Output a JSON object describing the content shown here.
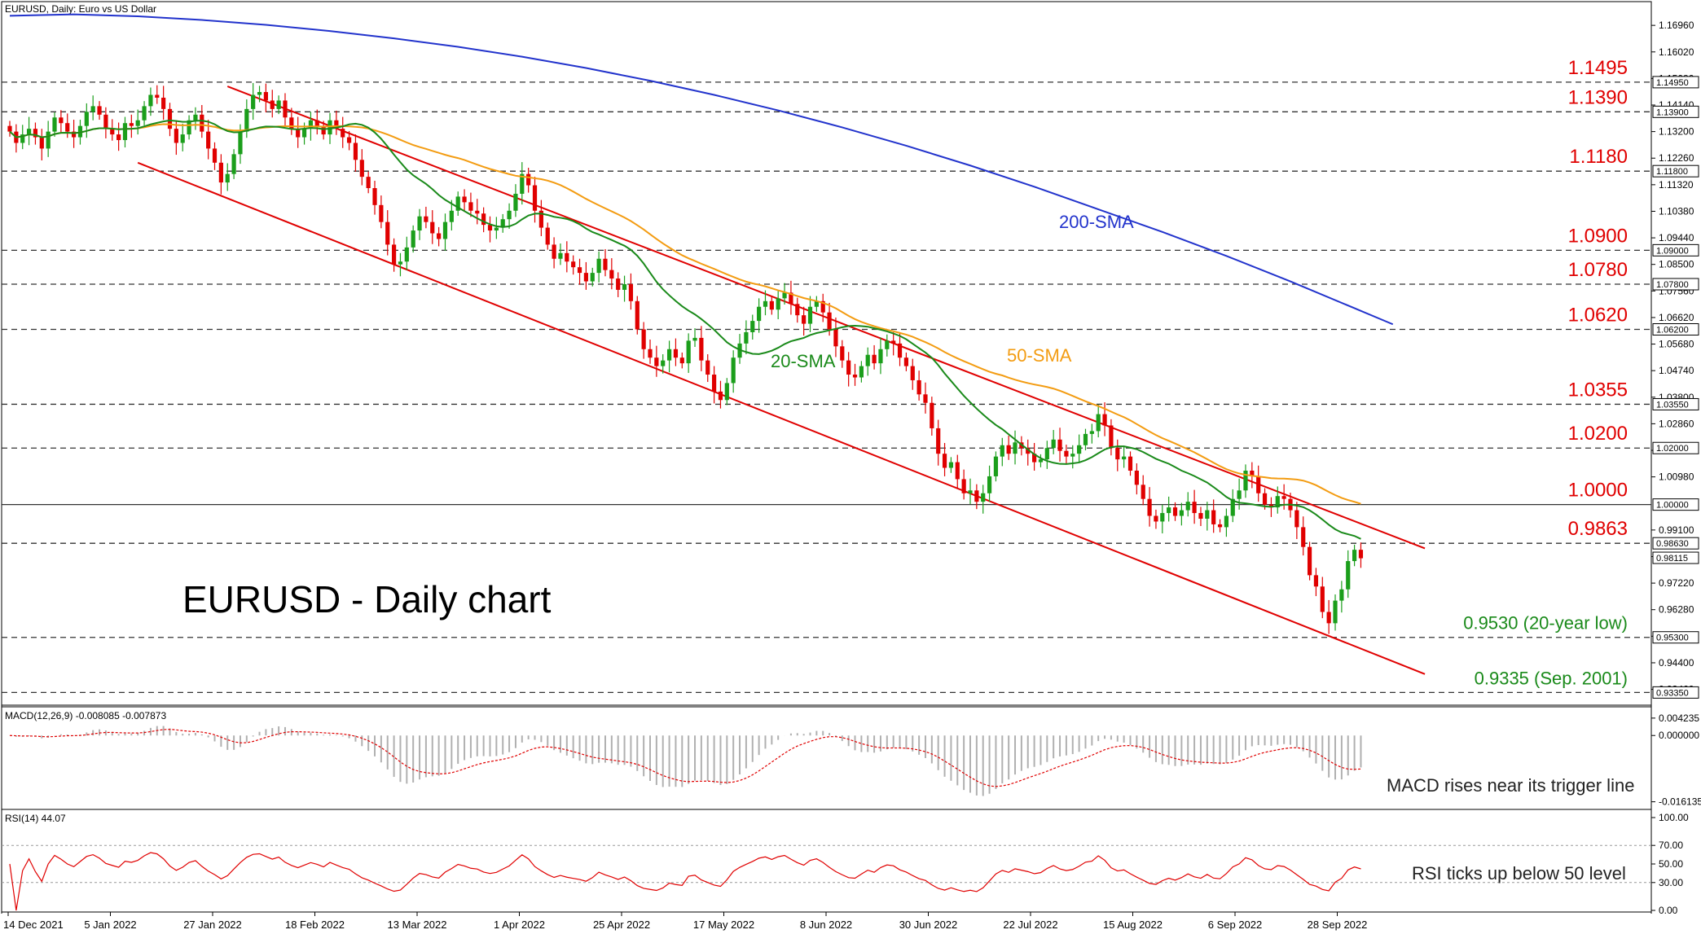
{
  "chart_data": {
    "type": "candlestick",
    "symbol_header": "EURUSD, Daily:  Euro vs US Dollar",
    "title": "EURUSD - Daily chart",
    "price_ticks": [
      "1.16960",
      "1.16020",
      "1.15080",
      "1.14140",
      "1.13200",
      "1.12260",
      "1.11320",
      "1.10380",
      "1.09440",
      "1.08500",
      "1.07560",
      "1.06620",
      "1.05680",
      "1.04740",
      "1.03800",
      "1.02860",
      "1.01920",
      "1.00980",
      "0.99100",
      "0.98160",
      "0.97220",
      "0.96280",
      "0.95340",
      "0.94400",
      "0.93460"
    ],
    "ylim": [
      0.929,
      1.178
    ],
    "levels": [
      {
        "value": 1.1495,
        "label": "1.1495",
        "box": "1.14950"
      },
      {
        "value": 1.139,
        "label": "1.1390",
        "box": "1.13900"
      },
      {
        "value": 1.118,
        "label": "1.1180",
        "box": "1.11800"
      },
      {
        "value": 1.09,
        "label": "1.0900",
        "box": "1.09000"
      },
      {
        "value": 1.078,
        "label": "1.0780",
        "box": "1.07800"
      },
      {
        "value": 1.062,
        "label": "1.0620",
        "box": "1.06200"
      },
      {
        "value": 1.0355,
        "label": "1.0355",
        "box": "1.03550"
      },
      {
        "value": 1.02,
        "label": "1.0200",
        "box": "1.02000"
      },
      {
        "value": 1.0,
        "label": "1.0000",
        "box": "1.00000",
        "solid": true
      },
      {
        "value": 0.9863,
        "label": "0.9863",
        "box": "0.98630"
      },
      {
        "value": 0.953,
        "label": "0.9530 (20-year low)",
        "box": "0.95300",
        "green": true
      },
      {
        "value": 0.9335,
        "label": "0.9335 (Sep. 2001)",
        "box": "0.93350",
        "green": true
      }
    ],
    "last_price_box": "0.98115",
    "last_price": 0.98115,
    "dates": [
      "14 Dec 2021",
      "5 Jan 2022",
      "27 Jan 2022",
      "18 Feb 2022",
      "13 Mar 2022",
      "1 Apr 2022",
      "25 Apr 2022",
      "17 May 2022",
      "8 Jun 2022",
      "30 Jun 2022",
      "22 Jul 2022",
      "15 Aug 2022",
      "6 Sep 2022",
      "28 Sep 2022"
    ],
    "closes": [
      1.132,
      1.128,
      1.131,
      1.133,
      1.13,
      1.126,
      1.132,
      1.137,
      1.135,
      1.132,
      1.13,
      1.134,
      1.139,
      1.141,
      1.138,
      1.133,
      1.131,
      1.129,
      1.135,
      1.134,
      1.136,
      1.141,
      1.145,
      1.144,
      1.14,
      1.133,
      1.128,
      1.131,
      1.136,
      1.138,
      1.132,
      1.126,
      1.121,
      1.114,
      1.117,
      1.124,
      1.132,
      1.14,
      1.145,
      1.146,
      1.143,
      1.14,
      1.143,
      1.137,
      1.133,
      1.13,
      1.133,
      1.136,
      1.134,
      1.131,
      1.136,
      1.133,
      1.13,
      1.128,
      1.122,
      1.116,
      1.112,
      1.106,
      1.1,
      1.092,
      1.085,
      1.086,
      1.091,
      1.097,
      1.102,
      1.1,
      1.096,
      1.094,
      1.1,
      1.104,
      1.109,
      1.107,
      1.104,
      1.103,
      1.099,
      1.097,
      1.098,
      1.101,
      1.104,
      1.11,
      1.117,
      1.113,
      1.104,
      1.098,
      1.092,
      1.087,
      1.089,
      1.086,
      1.084,
      1.082,
      1.079,
      1.082,
      1.087,
      1.083,
      1.08,
      1.076,
      1.078,
      1.072,
      1.062,
      1.055,
      1.052,
      1.049,
      1.051,
      1.055,
      1.052,
      1.05,
      1.058,
      1.059,
      1.051,
      1.046,
      1.04,
      1.037,
      1.043,
      1.052,
      1.057,
      1.061,
      1.065,
      1.07,
      1.072,
      1.069,
      1.073,
      1.075,
      1.071,
      1.067,
      1.064,
      1.07,
      1.072,
      1.068,
      1.062,
      1.056,
      1.051,
      1.046,
      1.045,
      1.049,
      1.053,
      1.05,
      1.055,
      1.058,
      1.057,
      1.052,
      1.049,
      1.044,
      1.039,
      1.036,
      1.027,
      1.018,
      1.013,
      1.015,
      1.009,
      1.004,
      1.005,
      1.001,
      1.004,
      1.01,
      1.017,
      1.021,
      1.018,
      1.022,
      1.02,
      1.018,
      1.015,
      1.016,
      1.02,
      1.023,
      1.019,
      1.017,
      1.018,
      1.021,
      1.025,
      1.026,
      1.032,
      1.028,
      1.02,
      1.016,
      1.017,
      1.012,
      1.007,
      1.002,
      0.996,
      0.994,
      0.997,
      0.999,
      0.996,
      0.998,
      1.001,
      0.997,
      0.995,
      0.998,
      0.993,
      0.992,
      0.996,
      1.002,
      1.005,
      1.012,
      1.01,
      1.004,
      1.0,
      0.999,
      1.003,
      1.002,
      0.998,
      0.992,
      0.985,
      0.975,
      0.971,
      0.962,
      0.958,
      0.966,
      0.97,
      0.98,
      0.984,
      0.981
    ],
    "sma20_label": "20-SMA",
    "sma50_label": "50-SMA",
    "sma200_label": "200-SMA",
    "sma200": [
      1.173,
      1.1735,
      1.1728,
      1.1715,
      1.1698,
      1.1676,
      1.165,
      1.162,
      1.1585,
      1.1545,
      1.15,
      1.145,
      1.1395,
      1.1335,
      1.127,
      1.12,
      1.1125,
      1.1045,
      1.0965,
      1.088,
      1.079,
      1.0695,
      1.0638
    ],
    "sma200_x": [
      0,
      10,
      20,
      30,
      40,
      50,
      60,
      70,
      80,
      90,
      100,
      110,
      120,
      130,
      140,
      150,
      160,
      170,
      180,
      190,
      200,
      210,
      216
    ],
    "channel_upper": {
      "from": [
        1.148,
        34
      ],
      "to": [
        0.9845,
        221
      ]
    },
    "channel_lower": {
      "from": [
        1.121,
        20
      ],
      "to": [
        0.94,
        221
      ]
    },
    "macd": {
      "header": "MACD(12,26,9) -0.008085 -0.007873",
      "ticks": [
        "0.004235",
        "0.000000",
        "-0.016135"
      ],
      "annotation": "MACD rises near its trigger line"
    },
    "rsi": {
      "header": "RSI(14) 44.07",
      "ticks": [
        "100.00",
        "70.00",
        "50.00",
        "30.00",
        "0.00"
      ],
      "annotation": "RSI ticks up below 50 level"
    },
    "colors": {
      "bull": "#1b9e1b",
      "bear": "#e00000",
      "sma20": "#1a8a1a",
      "sma50": "#f39c12",
      "sma200": "#2233cc",
      "channel": "#e00000"
    }
  }
}
